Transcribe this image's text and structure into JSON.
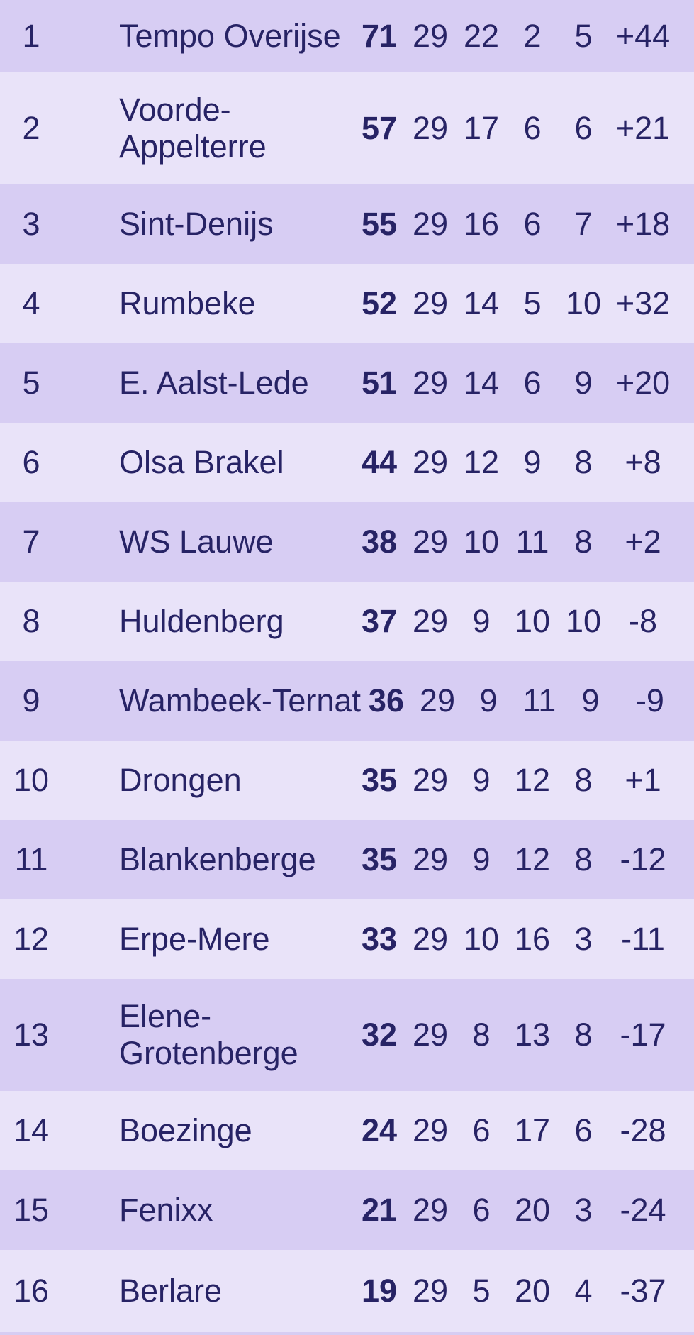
{
  "colors": {
    "row_odd": "#d7cdf3",
    "row_even": "#e9e3f9",
    "text": "#272365",
    "points_text": "#201c5e"
  },
  "standings": {
    "rows": [
      {
        "position": "1",
        "team": "Tempo Overijse",
        "points": "71",
        "played": "29",
        "wins": "22",
        "losses": "2",
        "draws": "5",
        "goal_difference": "+44"
      },
      {
        "position": "2",
        "team": "Voorde-\nAppelterre",
        "points": "57",
        "played": "29",
        "wins": "17",
        "losses": "6",
        "draws": "6",
        "goal_difference": "+21"
      },
      {
        "position": "3",
        "team": "Sint-Denijs",
        "points": "55",
        "played": "29",
        "wins": "16",
        "losses": "6",
        "draws": "7",
        "goal_difference": "+18"
      },
      {
        "position": "4",
        "team": "Rumbeke",
        "points": "52",
        "played": "29",
        "wins": "14",
        "losses": "5",
        "draws": "10",
        "goal_difference": "+32"
      },
      {
        "position": "5",
        "team": "E. Aalst-Lede",
        "points": "51",
        "played": "29",
        "wins": "14",
        "losses": "6",
        "draws": "9",
        "goal_difference": "+20"
      },
      {
        "position": "6",
        "team": "Olsa Brakel",
        "points": "44",
        "played": "29",
        "wins": "12",
        "losses": "9",
        "draws": "8",
        "goal_difference": "+8"
      },
      {
        "position": "7",
        "team": "WS Lauwe",
        "points": "38",
        "played": "29",
        "wins": "10",
        "losses": "11",
        "draws": "8",
        "goal_difference": "+2"
      },
      {
        "position": "8",
        "team": "Huldenberg",
        "points": "37",
        "played": "29",
        "wins": "9",
        "losses": "10",
        "draws": "10",
        "goal_difference": "-8"
      },
      {
        "position": "9",
        "team": "Wambeek-Ternat",
        "points": "36",
        "played": "29",
        "wins": "9",
        "losses": "11",
        "draws": "9",
        "goal_difference": "-9"
      },
      {
        "position": "10",
        "team": "Drongen",
        "points": "35",
        "played": "29",
        "wins": "9",
        "losses": "12",
        "draws": "8",
        "goal_difference": "+1"
      },
      {
        "position": "11",
        "team": "Blankenberge",
        "points": "35",
        "played": "29",
        "wins": "9",
        "losses": "12",
        "draws": "8",
        "goal_difference": "-12"
      },
      {
        "position": "12",
        "team": "Erpe-Mere",
        "points": "33",
        "played": "29",
        "wins": "10",
        "losses": "16",
        "draws": "3",
        "goal_difference": "-11"
      },
      {
        "position": "13",
        "team": "Elene-\nGrotenberge",
        "points": "32",
        "played": "29",
        "wins": "8",
        "losses": "13",
        "draws": "8",
        "goal_difference": "-17"
      },
      {
        "position": "14",
        "team": "Boezinge",
        "points": "24",
        "played": "29",
        "wins": "6",
        "losses": "17",
        "draws": "6",
        "goal_difference": "-28"
      },
      {
        "position": "15",
        "team": "Fenixx",
        "points": "21",
        "played": "29",
        "wins": "6",
        "losses": "20",
        "draws": "3",
        "goal_difference": "-24"
      },
      {
        "position": "16",
        "team": "Berlare",
        "points": "19",
        "played": "29",
        "wins": "5",
        "losses": "20",
        "draws": "4",
        "goal_difference": "-37"
      }
    ]
  }
}
